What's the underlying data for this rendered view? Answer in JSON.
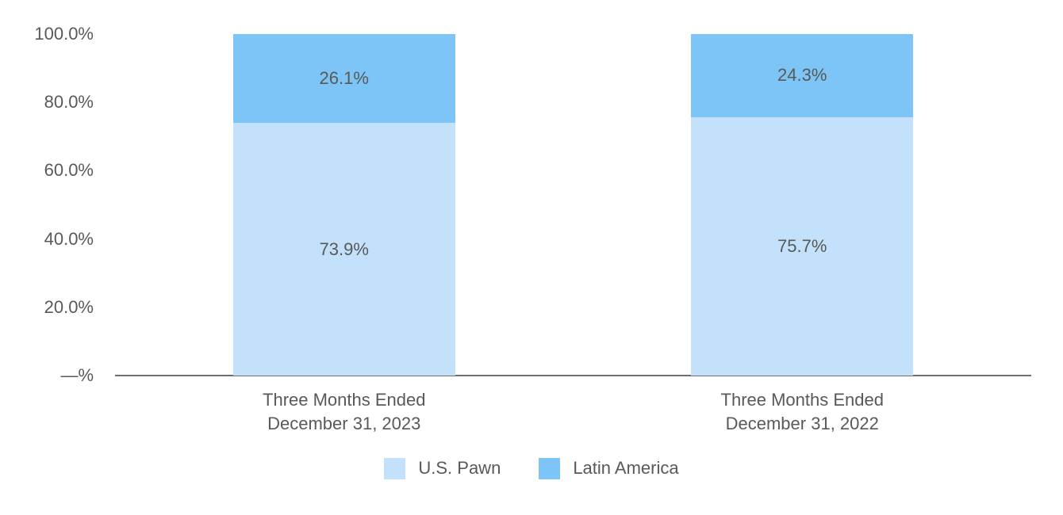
{
  "chart_data": {
    "type": "bar",
    "stacked": true,
    "percent_stacked": true,
    "title": "",
    "grid": false,
    "categories": [
      {
        "lines": [
          "Three Months Ended",
          "December 31, 2023"
        ]
      },
      {
        "lines": [
          "Three Months Ended",
          "December 31, 2022"
        ]
      }
    ],
    "series": [
      {
        "name": "U.S. Pawn",
        "color": "#c3e1fa",
        "values": [
          73.9,
          75.7
        ],
        "labels": [
          "73.9%",
          "75.7%"
        ]
      },
      {
        "name": "Latin America",
        "color": "#7cc5f6",
        "values": [
          26.1,
          24.3
        ],
        "labels": [
          "26.1%",
          "24.3%"
        ]
      }
    ],
    "y_axis": {
      "min": 0,
      "max": 100,
      "ticks": [
        {
          "value": 100,
          "label": "100.0%"
        },
        {
          "value": 80,
          "label": "80.0%"
        },
        {
          "value": 60,
          "label": "60.0%"
        },
        {
          "value": 40,
          "label": "40.0%"
        },
        {
          "value": 20,
          "label": "20.0%"
        },
        {
          "value": 0,
          "label": "—%"
        }
      ]
    },
    "legend": {
      "position": "bottom",
      "entries": [
        "U.S. Pawn",
        "Latin America"
      ]
    }
  },
  "colors": {
    "text": "#595959",
    "axis_line": "#6e6e6e",
    "background": "#ffffff"
  }
}
